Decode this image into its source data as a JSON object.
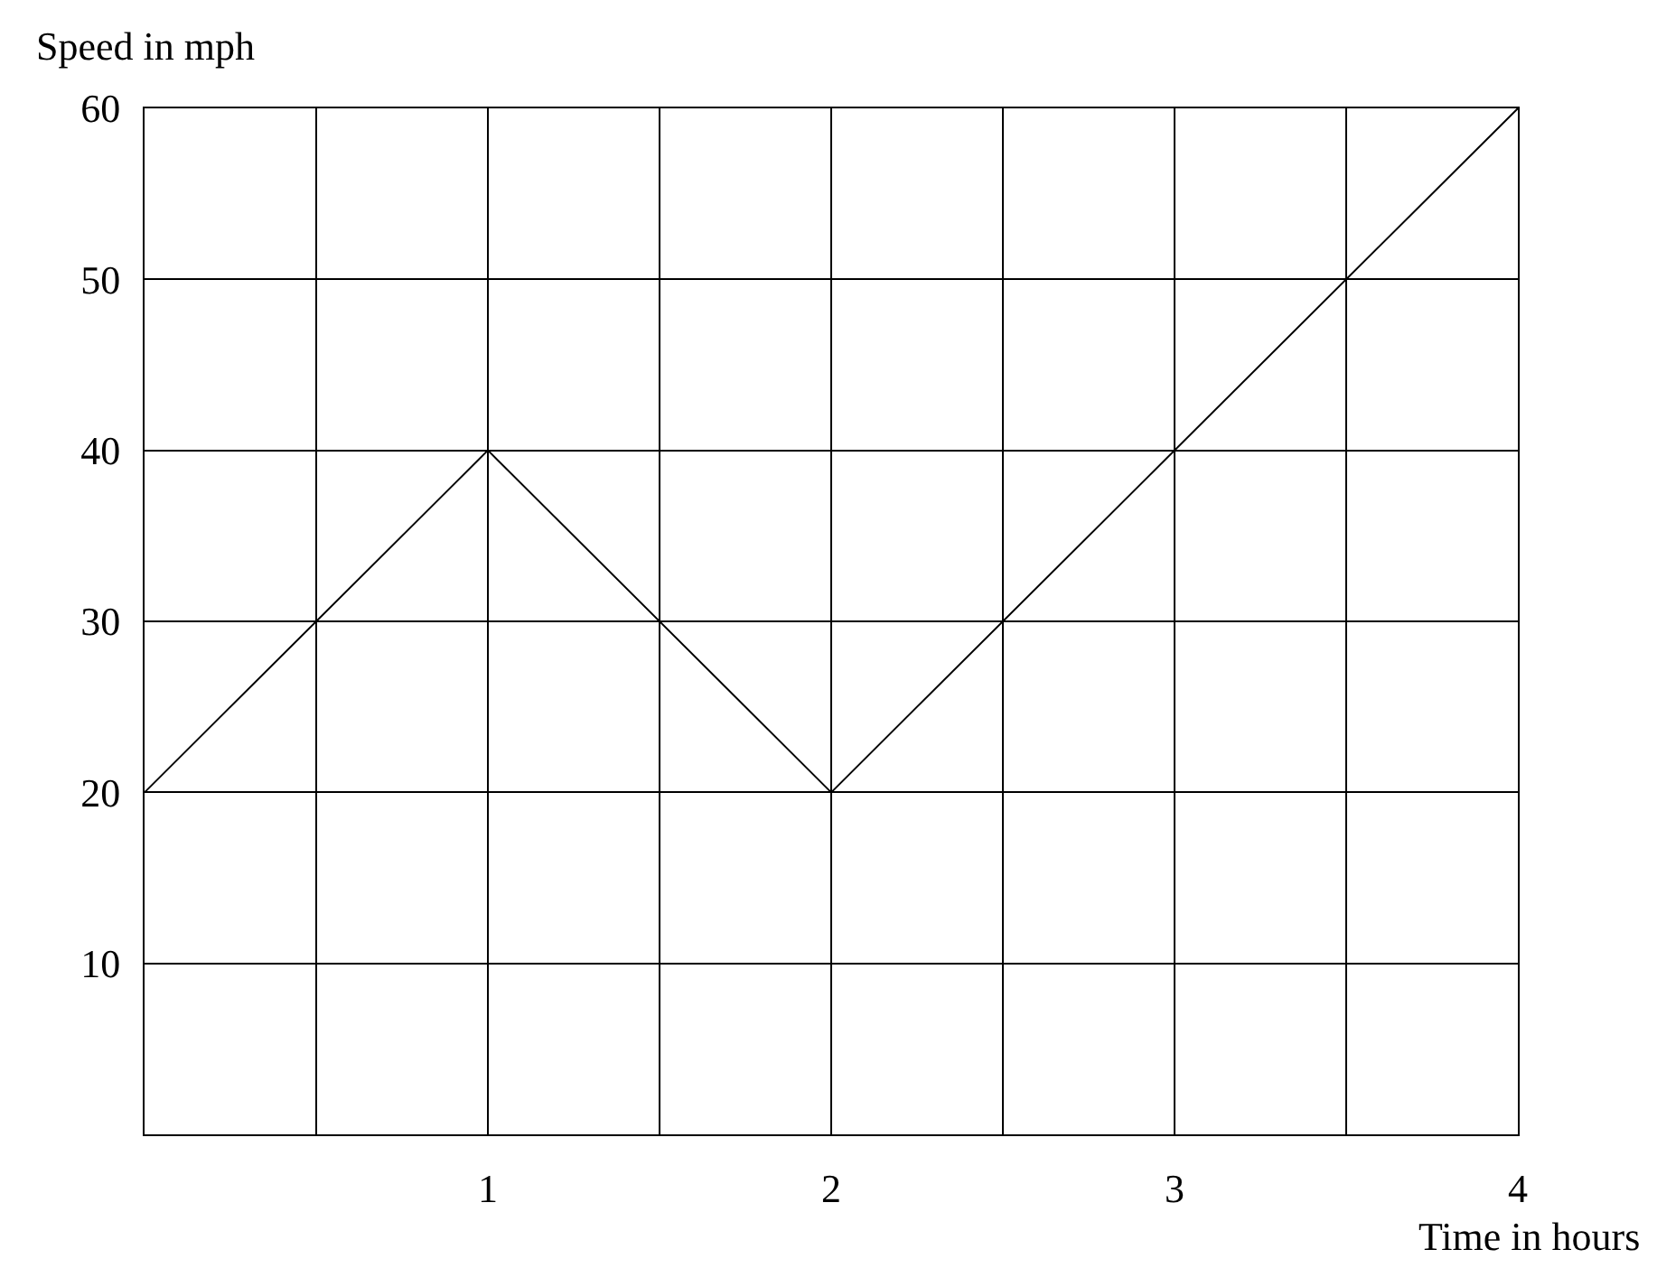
{
  "chart_data": {
    "type": "line",
    "xlabel": "Time in hours",
    "ylabel": "Speed in mph",
    "x": [
      0,
      1,
      2,
      4
    ],
    "values": [
      20,
      40,
      20,
      60
    ],
    "color": "#000000",
    "xlim": [
      0,
      4
    ],
    "xticks": [
      {
        "value": 0.5,
        "label": null
      },
      1,
      {
        "value": 1.5,
        "label": null
      },
      2,
      {
        "value": 2.5,
        "label": null
      },
      3,
      {
        "value": 3.5,
        "label": null
      },
      4
    ],
    "ylim": [
      0,
      60
    ],
    "yticks": [
      10,
      20,
      30,
      40,
      50,
      60
    ],
    "grid": true
  }
}
